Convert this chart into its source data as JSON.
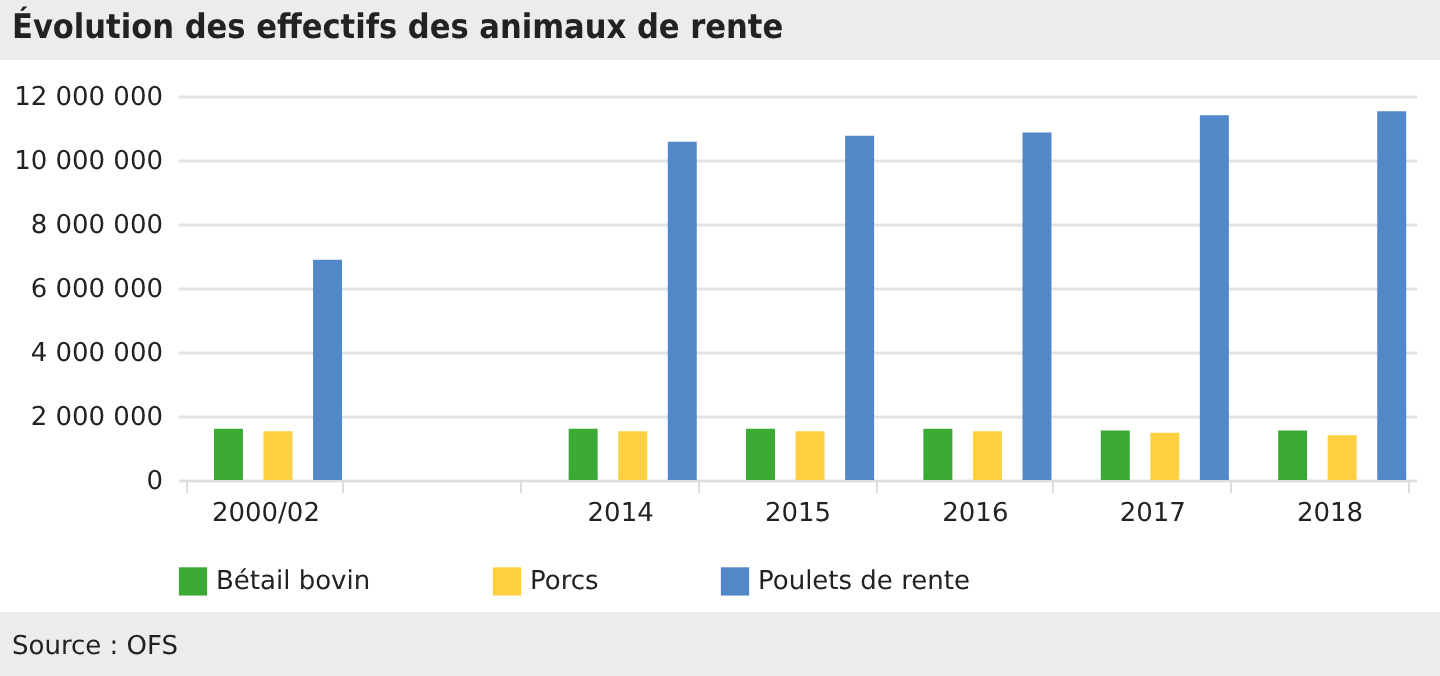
{
  "chart_data": {
    "type": "bar",
    "title": "Évolution des effectifs des animaux de rente",
    "categories": [
      "2000/02",
      null,
      "2014",
      "2015",
      "2016",
      "2017",
      "2018"
    ],
    "series": [
      {
        "name": "Bétail bovin",
        "color": "#3aaa35",
        "values": [
          1600000,
          null,
          1600000,
          1600000,
          1600000,
          1550000,
          1550000
        ]
      },
      {
        "name": "Porcs",
        "color": "#ffd042",
        "values": [
          1520000,
          null,
          1520000,
          1520000,
          1520000,
          1480000,
          1400000
        ]
      },
      {
        "name": "Poulets de rente",
        "color": "#5288c8",
        "values": [
          6880000,
          null,
          10570000,
          10760000,
          10860000,
          11400000,
          11520000
        ]
      }
    ],
    "ylim": [
      0,
      12000000
    ],
    "yticks": [
      {
        "value": 0,
        "label": "0"
      },
      {
        "value": 2000000,
        "label": "2 000 000"
      },
      {
        "value": 4000000,
        "label": "4 000 000"
      },
      {
        "value": 6000000,
        "label": "6 000 000"
      },
      {
        "value": 8000000,
        "label": "8 000 000"
      },
      {
        "value": 10000000,
        "label": "10 000 000"
      },
      {
        "value": 12000000,
        "label": "12 000 000"
      }
    ],
    "grid": "y",
    "legend": "bottom",
    "annotations": [
      "Source : OFS"
    ]
  }
}
